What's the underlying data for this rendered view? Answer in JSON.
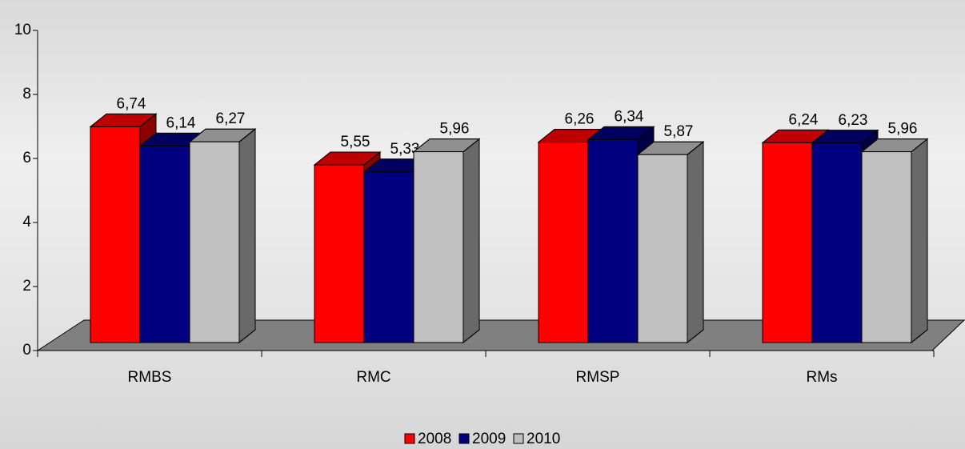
{
  "chart_data": {
    "type": "bar3d",
    "categories": [
      "RMBS",
      "RMC",
      "RMSP",
      "RMs"
    ],
    "series": [
      {
        "name": "2008",
        "color": "#ff0000",
        "values": [
          6.74,
          5.55,
          6.26,
          6.24
        ],
        "value_labels": [
          "6,74",
          "5,55",
          "6,26",
          "6,24"
        ]
      },
      {
        "name": "2009",
        "color": "#000080",
        "values": [
          6.14,
          5.33,
          6.34,
          6.23
        ],
        "value_labels": [
          "6,14",
          "5,33",
          "6,34",
          "6,23"
        ]
      },
      {
        "name": "2010",
        "color": "#c0c0c0",
        "values": [
          6.27,
          5.96,
          5.87,
          5.96
        ],
        "value_labels": [
          "6,27",
          "5,96",
          "5,87",
          "5,96"
        ]
      }
    ],
    "ylim": [
      0,
      10
    ],
    "yticks": [
      0,
      2,
      4,
      6,
      8,
      10
    ],
    "legend": "bottom"
  }
}
